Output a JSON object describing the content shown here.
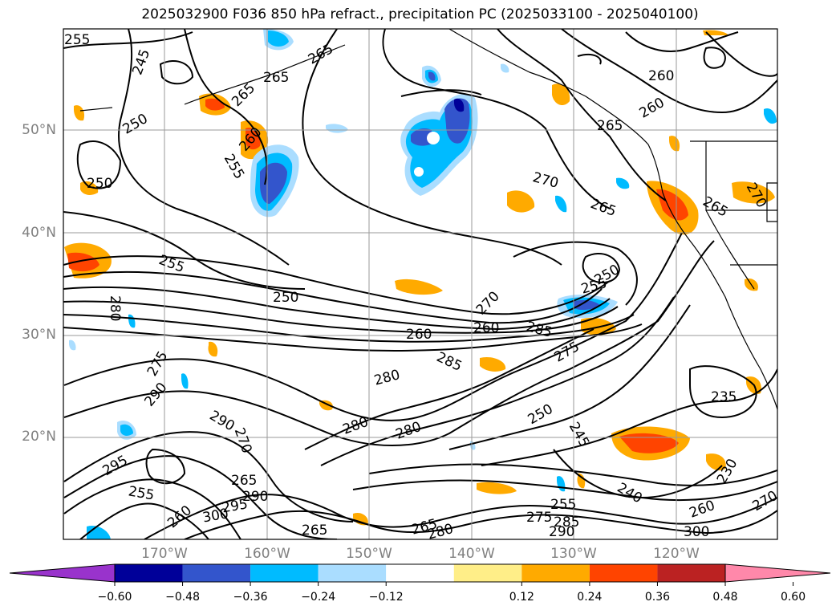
{
  "title": "2025032900 F036 850 hPa refract., precipitation PC (2025033100 - 2025040100)",
  "map": {
    "lat_labels": [
      "50°N",
      "40°N",
      "30°N",
      "20°N"
    ],
    "lon_labels": [
      "170°W",
      "160°W",
      "150°W",
      "140°W",
      "130°W",
      "120°W"
    ],
    "contour_labels": [
      "255",
      "245",
      "265",
      "265",
      "265",
      "250",
      "260",
      "255",
      "250",
      "260",
      "260",
      "265",
      "270",
      "265",
      "265",
      "270",
      "255",
      "250",
      "260",
      "255",
      "280",
      "250",
      "270",
      "285",
      "260",
      "285",
      "275",
      "275",
      "280",
      "290",
      "235",
      "290",
      "280",
      "250",
      "280",
      "260",
      "270",
      "245",
      "295",
      "255",
      "260",
      "265",
      "300",
      "295",
      "290",
      "240",
      "230",
      "265",
      "265",
      "280",
      "275",
      "255",
      "290",
      "300",
      "260",
      "270",
      "285"
    ],
    "colors": {
      "land_line": "#000000",
      "grid": "#9a9a9a",
      "contour": "#000000"
    }
  },
  "colorbar": {
    "ticks": [
      "−0.60",
      "−0.48",
      "−0.36",
      "−0.24",
      "−0.12",
      "0.12",
      "0.24",
      "0.36",
      "0.48",
      "0.60"
    ],
    "colors": [
      "#9933cc",
      "#000099",
      "#3355cc",
      "#00bbff",
      "#aaddff",
      "#ffffff",
      "#ffee88",
      "#ffaa00",
      "#ff4400",
      "#bb2222",
      "#ff88aa"
    ]
  }
}
